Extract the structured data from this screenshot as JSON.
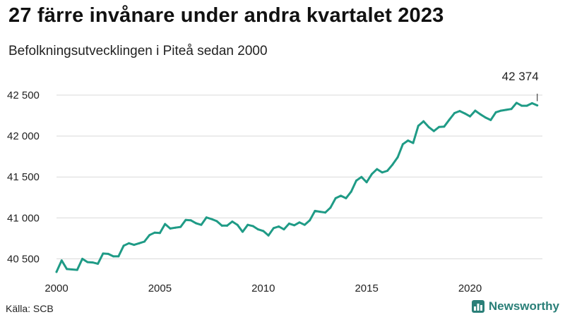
{
  "title": "27 färre invånare under andra kvartalet 2023",
  "subtitle": "Befolkningsutvecklingen i Piteå sedan 2000",
  "source": "Källa: SCB",
  "brand": {
    "name": "Newsworthy",
    "icon": "bar-chart-icon",
    "color": "#2a7f78"
  },
  "colors": {
    "line": "#1f9b86",
    "grid": "#d9d9d9",
    "annotation": "#444444"
  },
  "chart_data": {
    "type": "line",
    "title": "27 färre invånare under andra kvartalet 2023",
    "subtitle": "Befolkningsutvecklingen i Piteå sedan 2000",
    "xlabel": "",
    "ylabel": "",
    "xlim": [
      2000,
      2023.5
    ],
    "ylim": [
      40340,
      42560
    ],
    "x_ticks": [
      2000,
      2005,
      2010,
      2015,
      2020
    ],
    "x_tick_labels": [
      "2000",
      "2005",
      "2010",
      "2015",
      "2020"
    ],
    "y_ticks": [
      40500,
      41000,
      41500,
      42000,
      42500
    ],
    "y_tick_labels": [
      "40 500",
      "41 000",
      "41 500",
      "42 000",
      "42 500"
    ],
    "grid": "horizontal",
    "legend": "none",
    "annotation": {
      "x": 2023.25,
      "y": 42374,
      "text": "42 374"
    },
    "series": [
      {
        "x": [
          2000.0,
          2000.25,
          2000.5,
          2000.75,
          2001.0,
          2001.25,
          2001.5,
          2001.75,
          2002.0,
          2002.25,
          2002.5,
          2002.75,
          2003.0,
          2003.25,
          2003.5,
          2003.75,
          2004.0,
          2004.25,
          2004.5,
          2004.75,
          2005.0,
          2005.25,
          2005.5,
          2005.75,
          2006.0,
          2006.25,
          2006.5,
          2006.75,
          2007.0,
          2007.25,
          2007.5,
          2007.75,
          2008.0,
          2008.25,
          2008.5,
          2008.75,
          2009.0,
          2009.25,
          2009.5,
          2009.75,
          2010.0,
          2010.25,
          2010.5,
          2010.75,
          2011.0,
          2011.25,
          2011.5,
          2011.75,
          2012.0,
          2012.25,
          2012.5,
          2012.75,
          2013.0,
          2013.25,
          2013.5,
          2013.75,
          2014.0,
          2014.25,
          2014.5,
          2014.75,
          2015.0,
          2015.25,
          2015.5,
          2015.75,
          2016.0,
          2016.25,
          2016.5,
          2016.75,
          2017.0,
          2017.25,
          2017.5,
          2017.75,
          2018.0,
          2018.25,
          2018.5,
          2018.75,
          2019.0,
          2019.25,
          2019.5,
          2019.75,
          2020.0,
          2020.25,
          2020.5,
          2020.75,
          2021.0,
          2021.25,
          2021.5,
          2021.75,
          2022.0,
          2022.25,
          2022.5,
          2022.75,
          2023.0,
          2023.25
        ],
        "y": [
          40340,
          40480,
          40375,
          40370,
          40365,
          40500,
          40460,
          40455,
          40440,
          40565,
          40560,
          40530,
          40530,
          40660,
          40690,
          40670,
          40690,
          40710,
          40790,
          40820,
          40815,
          40925,
          40870,
          40880,
          40890,
          40975,
          40970,
          40935,
          40915,
          41005,
          40985,
          40960,
          40905,
          40905,
          40955,
          40915,
          40830,
          40915,
          40900,
          40860,
          40840,
          40785,
          40875,
          40895,
          40860,
          40930,
          40910,
          40945,
          40915,
          40970,
          41085,
          41075,
          41065,
          41125,
          41240,
          41270,
          41240,
          41320,
          41455,
          41500,
          41435,
          41535,
          41595,
          41555,
          41575,
          41650,
          41740,
          41900,
          41945,
          41915,
          42125,
          42180,
          42110,
          42060,
          42110,
          42115,
          42200,
          42280,
          42305,
          42275,
          42240,
          42310,
          42265,
          42225,
          42195,
          42290,
          42310,
          42320,
          42330,
          42405,
          42370,
          42370,
          42401,
          42374
        ]
      }
    ]
  }
}
